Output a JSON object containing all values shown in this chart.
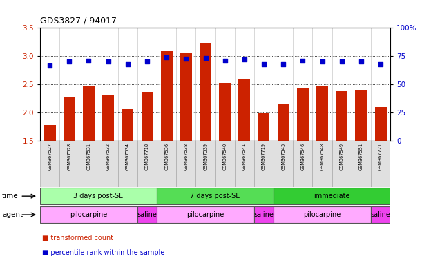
{
  "title": "GDS3827 / 94017",
  "samples": [
    "GSM367527",
    "GSM367528",
    "GSM367531",
    "GSM367532",
    "GSM367534",
    "GSM367718",
    "GSM367536",
    "GSM367538",
    "GSM367539",
    "GSM367540",
    "GSM367541",
    "GSM367719",
    "GSM367545",
    "GSM367546",
    "GSM367548",
    "GSM367549",
    "GSM367551",
    "GSM367721"
  ],
  "transformed_count": [
    1.78,
    2.28,
    2.48,
    2.3,
    2.06,
    2.37,
    3.09,
    3.05,
    3.22,
    2.52,
    2.58,
    1.99,
    2.15,
    2.43,
    2.47,
    2.38,
    2.39,
    2.1
  ],
  "percentile_rank": [
    66.5,
    70.0,
    70.5,
    70.0,
    67.5,
    70.0,
    74.0,
    72.5,
    73.0,
    70.5,
    72.0,
    67.5,
    67.5,
    71.0,
    70.0,
    70.0,
    70.0,
    67.5
  ],
  "bar_color": "#cc2200",
  "dot_color": "#0000cc",
  "ylim_left": [
    1.5,
    3.5
  ],
  "ylim_right": [
    0,
    100
  ],
  "yticks_left": [
    1.5,
    2.0,
    2.5,
    3.0,
    3.5
  ],
  "yticks_right": [
    0,
    25,
    50,
    75,
    100
  ],
  "ytick_labels_right": [
    "0",
    "25",
    "50",
    "75",
    "100%"
  ],
  "time_groups": [
    {
      "label": "3 days post-SE",
      "start": 0,
      "end": 5,
      "color": "#aaffaa"
    },
    {
      "label": "7 days post-SE",
      "start": 6,
      "end": 11,
      "color": "#55dd55"
    },
    {
      "label": "immediate",
      "start": 12,
      "end": 17,
      "color": "#33cc33"
    }
  ],
  "agent_groups": [
    {
      "label": "pilocarpine",
      "start": 0,
      "end": 4,
      "color": "#ffaaff"
    },
    {
      "label": "saline",
      "start": 5,
      "end": 5,
      "color": "#ee44ee"
    },
    {
      "label": "pilocarpine",
      "start": 6,
      "end": 10,
      "color": "#ffaaff"
    },
    {
      "label": "saline",
      "start": 11,
      "end": 11,
      "color": "#ee44ee"
    },
    {
      "label": "pilocarpine",
      "start": 12,
      "end": 16,
      "color": "#ffaaff"
    },
    {
      "label": "saline",
      "start": 17,
      "end": 17,
      "color": "#ee44ee"
    }
  ],
  "legend_red_label": "transformed count",
  "legend_blue_label": "percentile rank within the sample",
  "bg_color": "#ffffff",
  "bar_bottom": 1.5,
  "cell_bg": "#e0e0e0",
  "cell_edge": "#aaaaaa"
}
